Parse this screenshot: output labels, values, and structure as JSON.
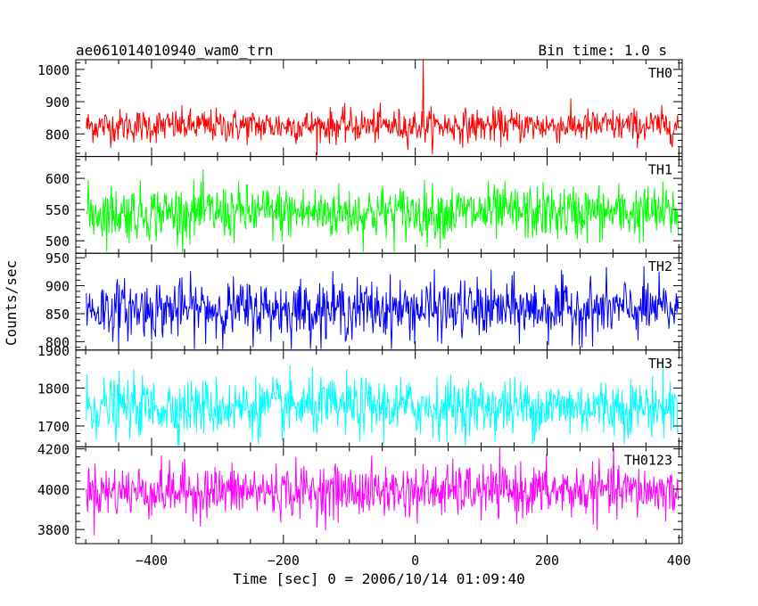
{
  "chart_data": {
    "type": "line",
    "title": "ae061014010940_wam0_trn",
    "bin_time_label": "Bin time: 1.0 s",
    "xlabel": "Time [sec] 0 = 2006/10/14 01:09:40",
    "ylabel": "Counts/sec",
    "xlim": [
      -515,
      405
    ],
    "x_ticks": [
      -400,
      -200,
      0,
      200,
      400
    ],
    "x_tick_labels": [
      "−400",
      "−200",
      "0",
      "200",
      "400"
    ],
    "x_start": -499,
    "x_end": 399,
    "panels": [
      {
        "name": "TH0",
        "color": "#ff0000",
        "ylim": [
          730,
          1030
        ],
        "y_ticks": [
          800,
          900,
          1000
        ],
        "y_tick_labels": [
          "800",
          "900",
          "1000"
        ],
        "mean": 825,
        "spread": 26,
        "clip_low": 733,
        "spike": {
          "x": 12,
          "y": 1030
        }
      },
      {
        "name": "TH1",
        "color": "#00ff00",
        "ylim": [
          480,
          635
        ],
        "y_ticks": [
          500,
          550,
          600
        ],
        "y_tick_labels": [
          "500",
          "550",
          "600"
        ],
        "mean": 545,
        "spread": 22,
        "clip_low": 482
      },
      {
        "name": "TH2",
        "color": "#0000ff",
        "ylim": [
          785,
          958
        ],
        "y_ticks": [
          800,
          850,
          900,
          950
        ],
        "y_tick_labels": [
          "800",
          "850",
          "900",
          "950"
        ],
        "mean": 858,
        "spread": 26,
        "clip_low": 787
      },
      {
        "name": "TH3",
        "color": "#00ffff",
        "ylim": [
          1645,
          1900
        ],
        "y_ticks": [
          1700,
          1800,
          1900
        ],
        "y_tick_labels": [
          "1700",
          "1800",
          "1900"
        ],
        "mean": 1750,
        "spread": 38,
        "clip_low": 1648
      },
      {
        "name": "TH0123",
        "color": "#ff00ff",
        "ylim": [
          3730,
          4210
        ],
        "y_ticks": [
          3800,
          4000,
          4200
        ],
        "y_tick_labels": [
          "3800",
          "4000",
          "4200"
        ],
        "mean": 3990,
        "spread": 65,
        "clip_low": 3735
      }
    ]
  }
}
